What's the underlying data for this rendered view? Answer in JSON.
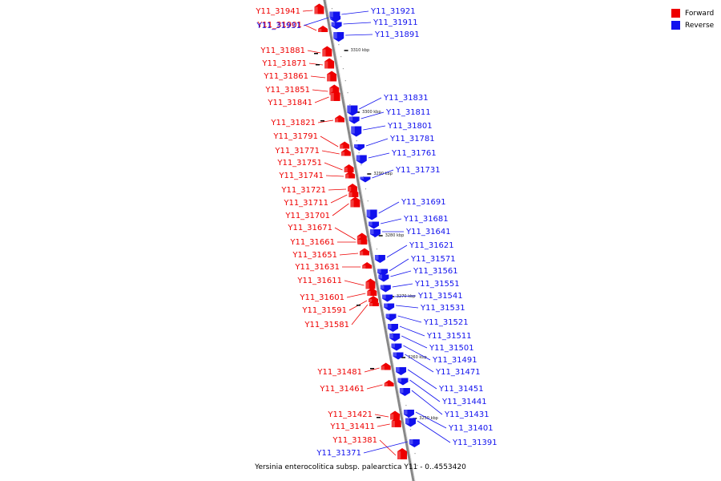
{
  "colors": {
    "forward": "#ee0000",
    "reverse": "#1111ee",
    "backbone": "#888888"
  },
  "legend": [
    {
      "label": "Forward",
      "color": "#ee0000"
    },
    {
      "label": "Reverse",
      "color": "#1111ee"
    }
  ],
  "kbp_marks": [
    "3310 kbp",
    "3300 kbp",
    "3290 kbp",
    "3280 kbp",
    "3270 kbp",
    "3260 kbp",
    "3250 kbp"
  ],
  "forward_genes": [
    "Y11_31941",
    "Y11_31901",
    "Y11_31881",
    "Y11_31871",
    "Y11_31861",
    "Y11_31851",
    "Y11_31841",
    "Y11_31821",
    "Y11_31791",
    "Y11_31771",
    "Y11_31751",
    "Y11_31741",
    "Y11_31721",
    "Y11_31711",
    "Y11_31701",
    "Y11_31671",
    "Y11_31661",
    "Y11_31651",
    "Y11_31631",
    "Y11_31611",
    "Y11_31601",
    "Y11_31591",
    "Y11_31581",
    "Y11_31481",
    "Y11_31461",
    "Y11_31421",
    "Y11_31411",
    "Y11_31381"
  ],
  "reverse_genes": [
    "Y11_31931",
    "Y11_31921",
    "Y11_31911",
    "Y11_31891",
    "Y11_31831",
    "Y11_31811",
    "Y11_31801",
    "Y11_31781",
    "Y11_31761",
    "Y11_31731",
    "Y11_31691",
    "Y11_31681",
    "Y11_31641",
    "Y11_31621",
    "Y11_31571",
    "Y11_31561",
    "Y11_31551",
    "Y11_31541",
    "Y11_31531",
    "Y11_31521",
    "Y11_31511",
    "Y11_31501",
    "Y11_31491",
    "Y11_31471",
    "Y11_31451",
    "Y11_31441",
    "Y11_31431",
    "Y11_31401",
    "Y11_31391",
    "Y11_31371"
  ],
  "caption": "Yersinia enterocolitica subsp. palearctica Y11 - 0..4553420"
}
